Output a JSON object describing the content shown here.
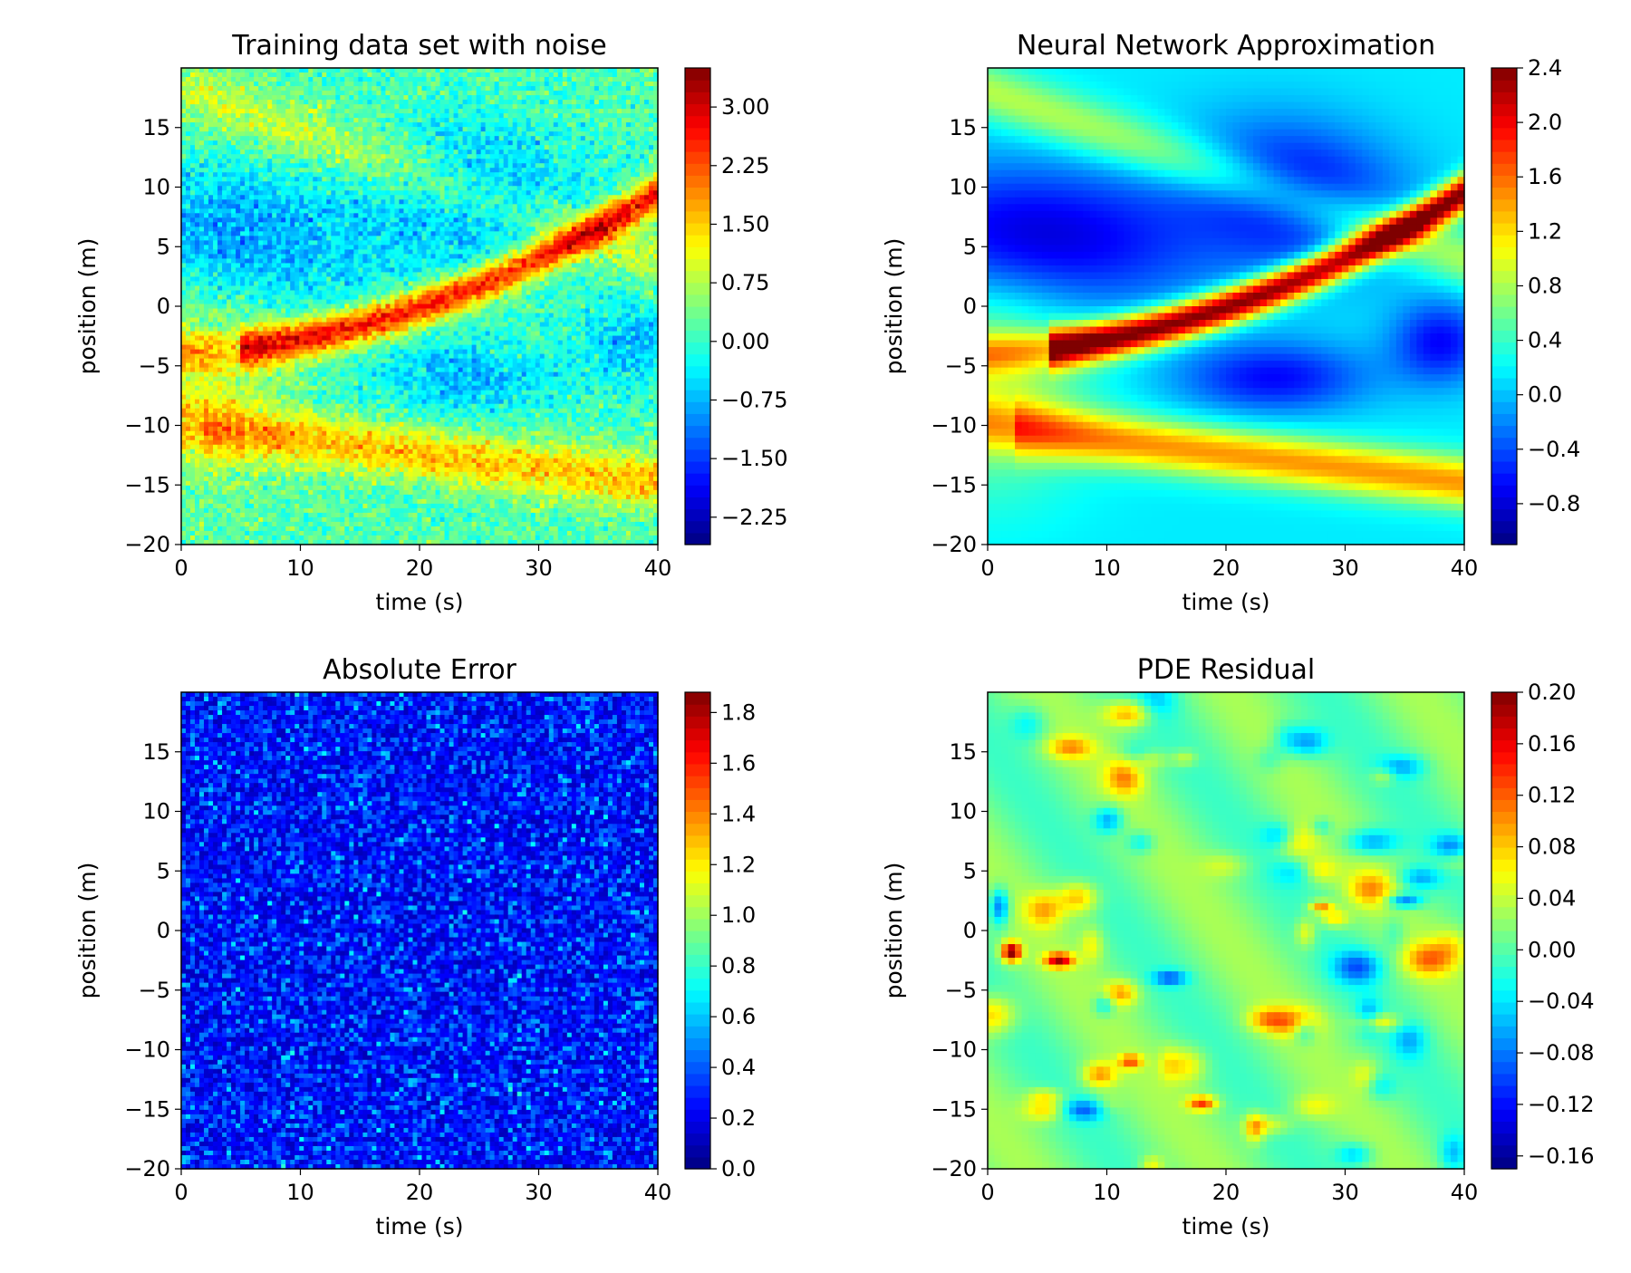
{
  "figure": {
    "panels": [
      {
        "id": "training",
        "title": "Training data set with noise"
      },
      {
        "id": "nn",
        "title": "Neural Network Approximation"
      },
      {
        "id": "error",
        "title": "Absolute Error"
      },
      {
        "id": "residual",
        "title": "PDE Residual"
      }
    ]
  },
  "colormap": [
    "#00007f",
    "#0000ff",
    "#007fff",
    "#00ffff",
    "#7fff7f",
    "#ffff00",
    "#ff7f00",
    "#ff0000",
    "#7f0000"
  ],
  "chart_data": [
    {
      "type": "heatmap",
      "title": "Training data set with noise",
      "xlabel": "time (s)",
      "ylabel": "position (m)",
      "xlim": [
        0,
        40
      ],
      "ylim": [
        -20,
        20
      ],
      "xticks": [
        "0",
        "10",
        "20",
        "30",
        "40"
      ],
      "yticks": [
        "−20",
        "−15",
        "−10",
        "−5",
        "0",
        "5",
        "10",
        "15"
      ],
      "colorbar": {
        "range": [
          -2.6,
          3.5
        ],
        "ticks": [
          "−2.25",
          "−1.50",
          "−0.75",
          "0.00",
          "0.75",
          "1.50",
          "2.25",
          "3.00"
        ]
      },
      "grid": false,
      "noise": "high"
    },
    {
      "type": "heatmap",
      "title": "Neural Network Approximation",
      "xlabel": "time (s)",
      "ylabel": "position (m)",
      "xlim": [
        0,
        40
      ],
      "ylim": [
        -20,
        20
      ],
      "xticks": [
        "0",
        "10",
        "20",
        "30",
        "40"
      ],
      "yticks": [
        "−20",
        "−15",
        "−10",
        "−5",
        "0",
        "5",
        "10",
        "15"
      ],
      "colorbar": {
        "range": [
          -1.1,
          2.4
        ],
        "ticks": [
          "−0.8",
          "−0.4",
          "0.0",
          "0.4",
          "0.8",
          "1.2",
          "1.6",
          "2.0",
          "2.4"
        ]
      },
      "grid": false,
      "noise": "none"
    },
    {
      "type": "heatmap",
      "title": "Absolute Error",
      "xlabel": "time (s)",
      "ylabel": "position (m)",
      "xlim": [
        0,
        40
      ],
      "ylim": [
        -20,
        20
      ],
      "xticks": [
        "0",
        "10",
        "20",
        "30",
        "40"
      ],
      "yticks": [
        "−20",
        "−15",
        "−10",
        "−5",
        "0",
        "5",
        "10",
        "15"
      ],
      "colorbar": {
        "range": [
          0.0,
          1.88
        ],
        "ticks": [
          "0.0",
          "0.2",
          "0.4",
          "0.6",
          "0.8",
          "1.0",
          "1.2",
          "1.4",
          "1.6",
          "1.8"
        ]
      },
      "grid": false,
      "noise": "random"
    },
    {
      "type": "heatmap",
      "title": "PDE Residual",
      "xlabel": "time (s)",
      "ylabel": "position (m)",
      "xlim": [
        0,
        40
      ],
      "ylim": [
        -20,
        20
      ],
      "xticks": [
        "0",
        "10",
        "20",
        "30",
        "40"
      ],
      "yticks": [
        "−20",
        "−15",
        "−10",
        "−5",
        "0",
        "5",
        "10",
        "15"
      ],
      "colorbar": {
        "range": [
          -0.17,
          0.2
        ],
        "ticks": [
          "−0.16",
          "−0.12",
          "−0.08",
          "−0.04",
          "0.00",
          "0.04",
          "0.08",
          "0.12",
          "0.16",
          "0.20"
        ]
      },
      "grid": false,
      "noise": "blobs"
    }
  ]
}
